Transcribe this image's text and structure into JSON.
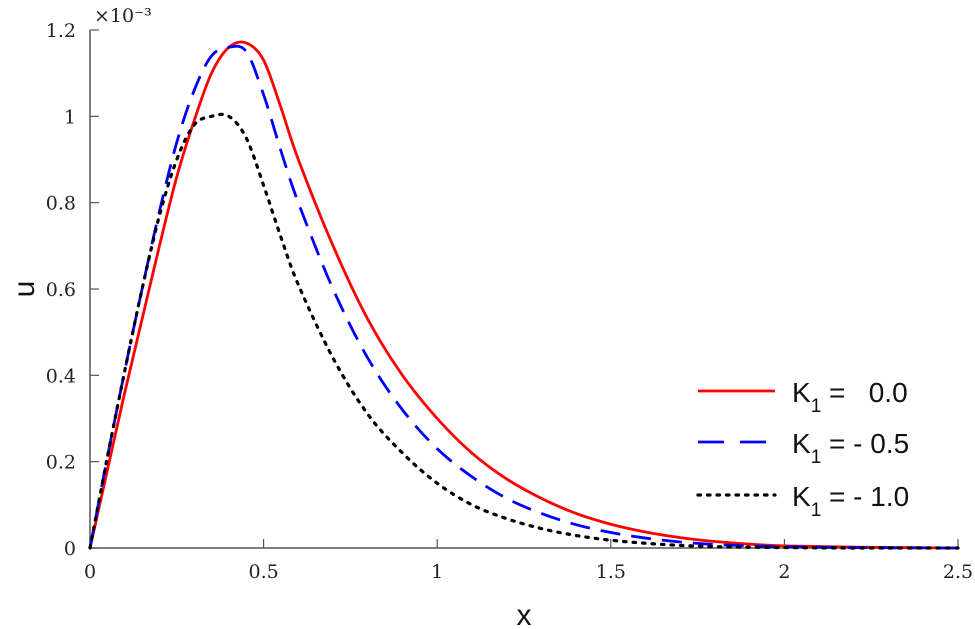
{
  "chart_data": {
    "type": "line",
    "title": "",
    "xlabel": "x",
    "ylabel": "u",
    "y_multiplier": "×10⁻³",
    "xlim": [
      0,
      2.5
    ],
    "ylim": [
      0,
      1.2
    ],
    "xticks": [
      "0",
      "0.5",
      "1",
      "1.5",
      "2",
      "2.5"
    ],
    "yticks": [
      "0",
      "0.2",
      "0.4",
      "0.6",
      "0.8",
      "1",
      "1.2"
    ],
    "grid": false,
    "legend_position": "lower right",
    "x": [
      0,
      0.05,
      0.1,
      0.15,
      0.2,
      0.25,
      0.3,
      0.35,
      0.4,
      0.45,
      0.5,
      0.55,
      0.6,
      0.7,
      0.8,
      0.9,
      1.0,
      1.1,
      1.2,
      1.3,
      1.4,
      1.5,
      1.6,
      1.7,
      1.8,
      1.9,
      2.0,
      2.2,
      2.5
    ],
    "series": [
      {
        "name": "K1 = 0.0",
        "color": "#ff0000",
        "style": "solid",
        "values": [
          0,
          0.18,
          0.36,
          0.53,
          0.7,
          0.86,
          0.99,
          1.1,
          1.16,
          1.17,
          1.13,
          1.02,
          0.9,
          0.7,
          0.53,
          0.4,
          0.3,
          0.22,
          0.16,
          0.115,
          0.08,
          0.055,
          0.037,
          0.024,
          0.015,
          0.009,
          0.005,
          0.002,
          0.0
        ]
      },
      {
        "name": "K1 = - 0.5",
        "color": "#0000ff",
        "style": "dashed",
        "values": [
          0,
          0.21,
          0.41,
          0.6,
          0.78,
          0.94,
          1.06,
          1.14,
          1.16,
          1.15,
          1.05,
          0.92,
          0.8,
          0.6,
          0.44,
          0.32,
          0.23,
          0.165,
          0.115,
          0.08,
          0.054,
          0.036,
          0.023,
          0.014,
          0.008,
          0.005,
          0.003,
          0.001,
          0.0
        ]
      },
      {
        "name": "K1 = - 1.0",
        "color": "#000000",
        "style": "dotted",
        "values": [
          0,
          0.21,
          0.41,
          0.6,
          0.77,
          0.9,
          0.98,
          1.0,
          1.0,
          0.95,
          0.84,
          0.72,
          0.61,
          0.44,
          0.31,
          0.22,
          0.15,
          0.1,
          0.068,
          0.045,
          0.029,
          0.018,
          0.011,
          0.006,
          0.003,
          0.002,
          0.001,
          0.0,
          0.0
        ]
      }
    ]
  },
  "legend": [
    {
      "prefix": "K",
      "sub": "1",
      "suffix": " =   0.0"
    },
    {
      "prefix": "K",
      "sub": "1",
      "suffix": " = - 0.5"
    },
    {
      "prefix": "K",
      "sub": "1",
      "suffix": " = - 1.0"
    }
  ]
}
